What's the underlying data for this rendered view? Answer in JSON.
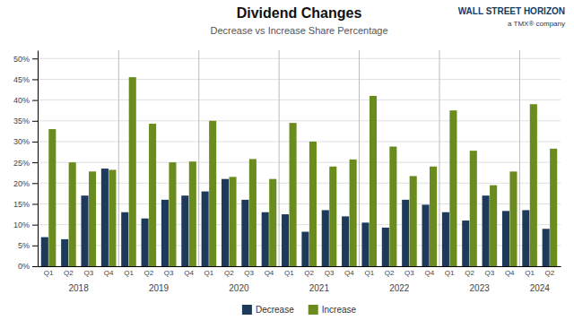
{
  "chart_data": {
    "type": "bar",
    "title": "Dividend Changes",
    "subtitle": "Decrease vs Increase Share Percentage",
    "annotations": [
      "WALL STREET HORIZON",
      "a TMX® company"
    ],
    "categories": [
      "Q1",
      "Q2",
      "Q3",
      "Q4",
      "Q1",
      "Q2",
      "Q3",
      "Q4",
      "Q1",
      "Q2",
      "Q3",
      "Q4",
      "Q1",
      "Q2",
      "Q3",
      "Q4",
      "Q1",
      "Q2",
      "Q3",
      "Q4",
      "Q1",
      "Q2",
      "Q3",
      "Q4",
      "Q1",
      "Q2"
    ],
    "category_groups": [
      "2018",
      "2019",
      "2020",
      "2021",
      "2022",
      "2023",
      "2024"
    ],
    "series": [
      {
        "name": "Decrease",
        "color": "#1e3a5a",
        "values": [
          0.07,
          0.065,
          0.17,
          0.235,
          0.13,
          0.115,
          0.16,
          0.17,
          0.18,
          0.21,
          0.16,
          0.13,
          0.125,
          0.083,
          0.135,
          0.12,
          0.105,
          0.093,
          0.16,
          0.148,
          0.13,
          0.11,
          0.17,
          0.133,
          0.135,
          0.09
        ]
      },
      {
        "name": "Increase",
        "color": "#6a8c1e",
        "values": [
          0.33,
          0.25,
          0.228,
          0.232,
          0.455,
          0.343,
          0.25,
          0.252,
          0.35,
          0.215,
          0.258,
          0.21,
          0.345,
          0.3,
          0.24,
          0.257,
          0.41,
          0.288,
          0.217,
          0.24,
          0.375,
          0.278,
          0.195,
          0.228,
          0.39,
          0.283
        ]
      }
    ],
    "ylim": [
      0,
      0.52
    ],
    "yticks": [
      {
        "value": 0,
        "label": "0%"
      },
      {
        "value": 0.05,
        "label": "5%"
      },
      {
        "value": 0.1,
        "label": "10%"
      },
      {
        "value": 0.15,
        "label": "15%"
      },
      {
        "value": 0.2,
        "label": "20%"
      },
      {
        "value": 0.25,
        "label": "25%"
      },
      {
        "value": 0.3,
        "label": "30%"
      },
      {
        "value": 0.35,
        "label": "35%"
      },
      {
        "value": 0.4,
        "label": "40%"
      },
      {
        "value": 0.45,
        "label": "45%"
      },
      {
        "value": 0.5,
        "label": "50%"
      }
    ],
    "grid": true,
    "legend": "bottom"
  }
}
